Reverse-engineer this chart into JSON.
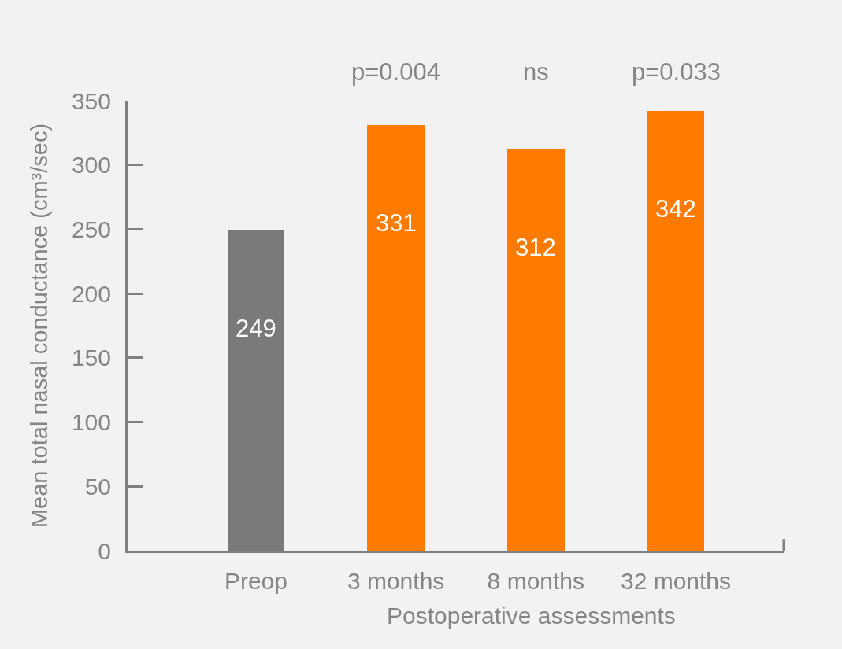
{
  "chart_data": {
    "type": "bar",
    "categories": [
      "Preop",
      "3 months",
      "8 months",
      "32 months"
    ],
    "values": [
      249,
      331,
      312,
      342
    ],
    "colors": [
      "#7a7a78",
      "#ff7b00",
      "#ff7b00",
      "#ff7b00"
    ],
    "xlabel": "Postoperative assessments",
    "ylabel": "Mean total nasal conductance (cm³/sec)",
    "ylim": [
      0,
      350
    ],
    "yticks": [
      0,
      50,
      100,
      150,
      200,
      250,
      300,
      350
    ],
    "data_labels": true,
    "annotations": [
      "p=0.004",
      "ns",
      "p=0.033"
    ]
  }
}
